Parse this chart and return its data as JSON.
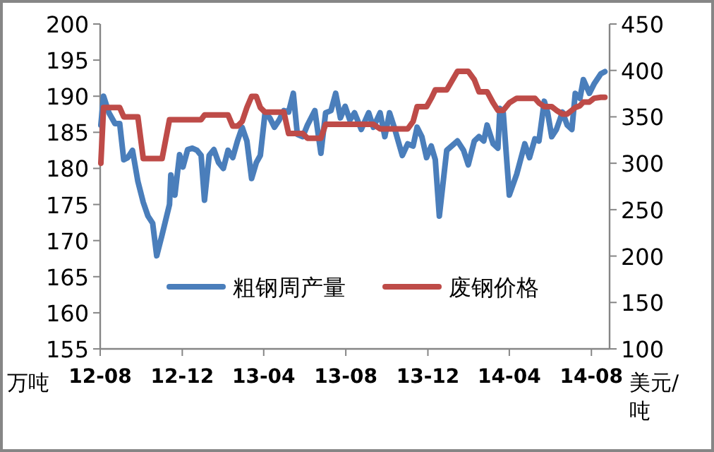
{
  "chart_data": {
    "type": "line",
    "ylabel": "万吨",
    "y2label": "美元/吨",
    "legend": "bottom",
    "x": [
      "2012-08-02",
      "2012-08-06",
      "2012-08-14",
      "2012-08-23",
      "2012-08-30",
      "2012-09-05",
      "2012-09-11",
      "2012-09-18",
      "2012-09-26",
      "2012-10-04",
      "2012-10-11",
      "2012-10-18",
      "2012-10-24",
      "2012-11-01",
      "2012-11-12",
      "2012-11-14",
      "2012-11-20",
      "2012-11-27",
      "2012-12-02",
      "2012-12-09",
      "2012-12-16",
      "2012-12-23",
      "2012-12-29",
      "2013-01-03",
      "2013-01-10",
      "2013-01-17",
      "2013-01-24",
      "2013-01-31",
      "2013-02-07",
      "2013-02-14",
      "2013-02-21",
      "2013-02-28",
      "2013-03-07",
      "2013-03-14",
      "2013-03-21",
      "2013-03-27",
      "2013-04-03",
      "2013-04-10",
      "2013-04-17",
      "2013-04-24",
      "2013-05-01",
      "2013-05-08",
      "2013-05-15",
      "2013-05-21",
      "2013-05-29",
      "2013-06-05",
      "2013-06-16",
      "2013-06-25",
      "2013-07-02",
      "2013-07-10",
      "2013-07-17",
      "2013-07-24",
      "2013-07-31",
      "2013-08-07",
      "2013-08-14",
      "2013-08-24",
      "2013-09-04",
      "2013-09-11",
      "2013-09-21",
      "2013-09-28",
      "2013-10-05",
      "2013-10-12",
      "2013-10-19",
      "2013-10-24",
      "2013-11-01",
      "2013-11-09",
      "2013-11-15",
      "2013-11-22",
      "2013-11-29",
      "2013-12-06",
      "2013-12-12",
      "2013-12-18",
      "2013-12-29",
      "2014-01-14",
      "2014-01-23",
      "2014-01-30",
      "2014-02-08",
      "2014-02-15",
      "2014-02-22",
      "2014-02-27",
      "2014-03-08",
      "2014-03-15",
      "2014-03-18",
      "2014-03-23",
      "2014-04-01",
      "2014-04-12",
      "2014-04-24",
      "2014-05-01",
      "2014-05-09",
      "2014-05-15",
      "2014-05-23",
      "2014-05-28",
      "2014-06-03",
      "2014-06-10",
      "2014-06-19",
      "2014-06-26",
      "2014-07-03",
      "2014-07-08",
      "2014-07-15",
      "2014-07-20",
      "2014-07-29",
      "2014-08-05",
      "2014-08-15",
      "2014-08-21"
    ],
    "xlim": [
      "2012-08-01",
      "2014-08-28"
    ],
    "xticks": [
      {
        "value": "2012-08",
        "label": "12-08"
      },
      {
        "value": "2012-12",
        "label": "12-12"
      },
      {
        "value": "2013-04",
        "label": "13-04"
      },
      {
        "value": "2013-08",
        "label": "13-08"
      },
      {
        "value": "2013-12",
        "label": "13-12"
      },
      {
        "value": "2014-04",
        "label": "14-04"
      },
      {
        "value": "2014-08",
        "label": "14-08"
      }
    ],
    "ylim": [
      155,
      200
    ],
    "yticks": [
      155,
      160,
      165,
      170,
      175,
      180,
      185,
      190,
      195,
      200
    ],
    "y2lim": [
      100,
      450
    ],
    "y2ticks": [
      100,
      150,
      200,
      250,
      300,
      350,
      400,
      450
    ],
    "series": [
      {
        "name": "粗钢周产量",
        "color": "#4a7ebb",
        "values": [
          186,
          190,
          187.7,
          186.2,
          186.2,
          181.2,
          181.5,
          182.5,
          178.2,
          175.3,
          173.4,
          172.4,
          167.9,
          170.8,
          175,
          179.1,
          176.3,
          181.9,
          180.2,
          182.6,
          182.8,
          182.5,
          181.8,
          175.6,
          181.8,
          182.6,
          180.8,
          180,
          182.5,
          181.5,
          183.8,
          185.7,
          183.8,
          178.6,
          180.8,
          181.8,
          187.7,
          187,
          185.7,
          186.7,
          188,
          187.8,
          190.4,
          184.7,
          184.4,
          186,
          188,
          182.1,
          187.7,
          188,
          190.4,
          187,
          188.6,
          186.7,
          187.7,
          185.4,
          187.7,
          185.7,
          187.7,
          184.4,
          187.7,
          185.7,
          183.4,
          181.8,
          183.4,
          183.1,
          185.7,
          184.4,
          181.5,
          183.1,
          181.2,
          173.4,
          182.5,
          183.8,
          182.5,
          180.5,
          183.8,
          184.4,
          183.8,
          186,
          183.4,
          182.8,
          188.3,
          187.7,
          176.3,
          179.2,
          183.4,
          181.5,
          184.1,
          183.8,
          189.3,
          187.7,
          184.4,
          185.4,
          187.8,
          186,
          185.4,
          190.4,
          189.7,
          192.3,
          190.4,
          191.7,
          193.1,
          193.4
        ]
      },
      {
        "name": "废钢价格",
        "color": "#be4b48",
        "axis": "y2",
        "values": [
          300,
          360,
          360,
          360,
          360,
          350,
          350,
          350,
          350,
          305,
          305,
          305,
          305,
          305,
          347,
          347,
          347,
          347,
          347,
          347,
          347,
          347,
          347,
          352,
          352,
          352,
          352,
          352,
          352,
          340,
          340,
          345,
          360,
          372,
          372,
          360,
          355,
          355,
          355,
          355,
          355,
          332,
          332,
          332,
          332,
          327,
          327,
          327,
          342,
          342,
          342,
          342,
          342,
          342,
          342,
          342,
          342,
          342,
          337,
          337,
          337,
          337,
          337,
          337,
          337,
          345,
          361,
          361,
          361,
          370,
          379,
          379,
          379,
          399,
          399,
          399,
          390,
          377,
          377,
          377,
          365,
          357,
          357,
          357,
          365,
          370,
          370,
          370,
          370,
          365,
          361,
          361,
          361,
          357,
          353,
          353,
          357,
          360,
          362,
          366,
          366,
          370,
          371,
          371
        ]
      }
    ]
  }
}
